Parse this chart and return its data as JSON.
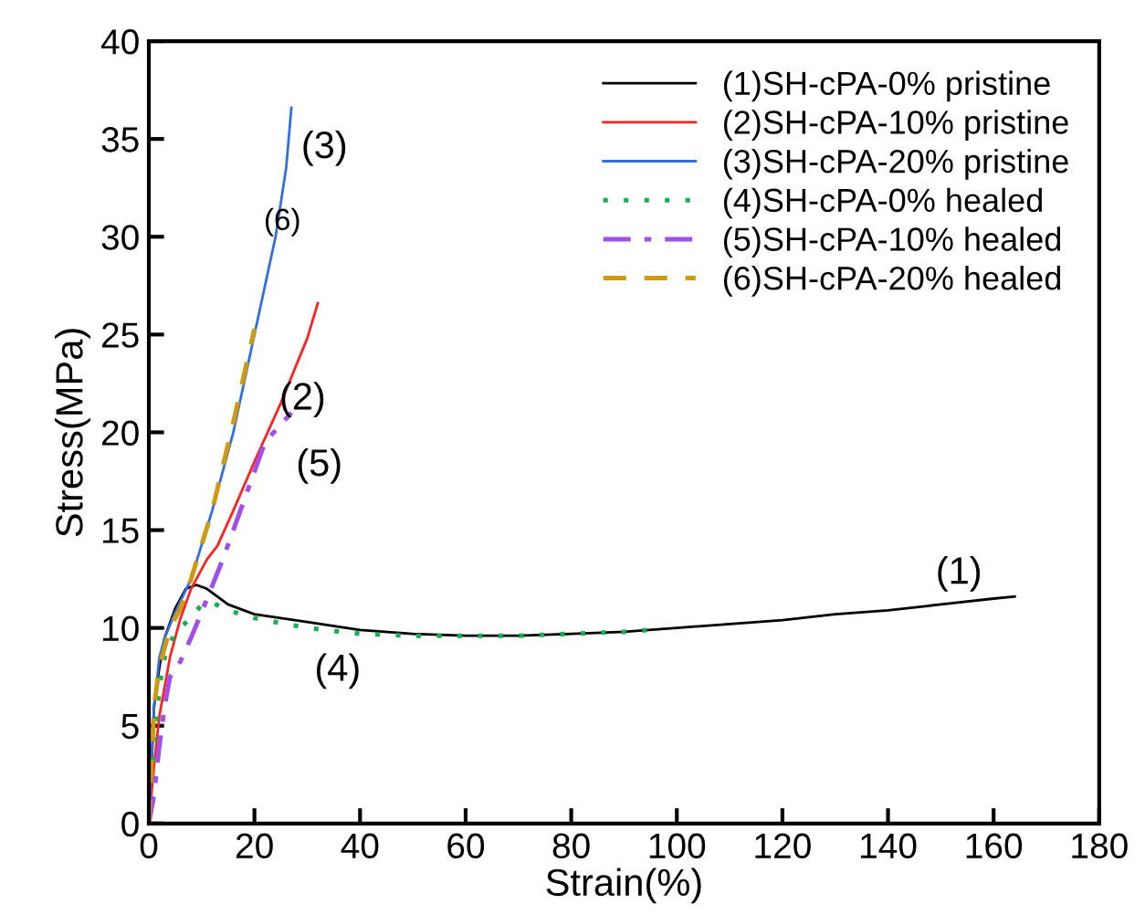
{
  "chart_data": {
    "type": "line",
    "xlabel": "Strain(%)",
    "ylabel": "Stress(MPa)",
    "xlim": [
      0,
      180
    ],
    "ylim": [
      0,
      40
    ],
    "xticks": [
      0,
      20,
      40,
      60,
      80,
      100,
      120,
      140,
      160,
      180
    ],
    "yticks": [
      0,
      5,
      10,
      15,
      20,
      25,
      30,
      35,
      40
    ],
    "grid": false,
    "legend": "top right",
    "marker": "none",
    "series": [
      {
        "name": "(1)SH-cPA-0% pristine",
        "color": "#000000",
        "line_style": "solid",
        "x": [
          0,
          0.5,
          1,
          2,
          3,
          5,
          7,
          9,
          11,
          15,
          20,
          25,
          30,
          40,
          50,
          60,
          70,
          80,
          90,
          100,
          110,
          120,
          130,
          140,
          150,
          160,
          164
        ],
        "values": [
          0,
          3,
          6,
          8,
          9.5,
          11,
          12,
          12.2,
          12,
          11.2,
          10.7,
          10.5,
          10.3,
          9.9,
          9.7,
          9.6,
          9.6,
          9.7,
          9.8,
          10,
          10.2,
          10.4,
          10.7,
          10.9,
          11.2,
          11.5,
          11.6
        ]
      },
      {
        "name": "(2)SH-cPA-10% pristine",
        "color": "#ff2020",
        "line_style": "solid",
        "x": [
          0,
          1,
          2,
          4,
          6,
          8,
          11,
          13,
          16,
          20,
          25,
          30,
          32
        ],
        "values": [
          0,
          3,
          5.5,
          8.5,
          10.5,
          12,
          13.5,
          14.2,
          16,
          18.5,
          21.5,
          24.8,
          26.6
        ]
      },
      {
        "name": "(3)SH-cPA-20% pristine",
        "color": "#2f6fe0",
        "line_style": "solid",
        "x": [
          0,
          0.5,
          1,
          2,
          3,
          5,
          8,
          12,
          16,
          20,
          24,
          26,
          27
        ],
        "values": [
          0,
          3,
          6,
          8.5,
          9.5,
          10.8,
          12.5,
          16,
          20,
          25,
          30,
          33.5,
          36.6
        ]
      },
      {
        "name": "(4)SH-cPA-0% healed",
        "color": "#14b050",
        "line_style": "dotted",
        "x": [
          0,
          1,
          2,
          3,
          5,
          8,
          10,
          12,
          15,
          20,
          30,
          40,
          50,
          60,
          70,
          80,
          90,
          95
        ],
        "values": [
          0,
          4,
          7,
          8.5,
          9.8,
          10.5,
          11.2,
          11.3,
          10.9,
          10.5,
          10.0,
          9.7,
          9.6,
          9.6,
          9.6,
          9.7,
          9.8,
          9.9
        ]
      },
      {
        "name": "(5)SH-cPA-10% healed",
        "color": "#a050e8",
        "line_style": "dashdot",
        "x": [
          0,
          1,
          2,
          3,
          4,
          6,
          8,
          10,
          14,
          18,
          22,
          27
        ],
        "values": [
          0,
          1.5,
          4,
          6,
          7.5,
          8.3,
          9.5,
          10.8,
          13.5,
          16.5,
          19.5,
          21
        ]
      },
      {
        "name": "(6)SH-cPA-20% healed",
        "color": "#d09a10",
        "line_style": "dashed",
        "x": [
          0,
          0.5,
          1,
          2,
          4,
          6,
          8,
          12,
          16,
          20
        ],
        "values": [
          0,
          3,
          6,
          8,
          10,
          11,
          12.5,
          16,
          20.5,
          25.3
        ]
      }
    ],
    "annotations": [
      "(1)",
      "(2)",
      "(3)",
      "(4)",
      "(5)",
      "(6)"
    ]
  }
}
